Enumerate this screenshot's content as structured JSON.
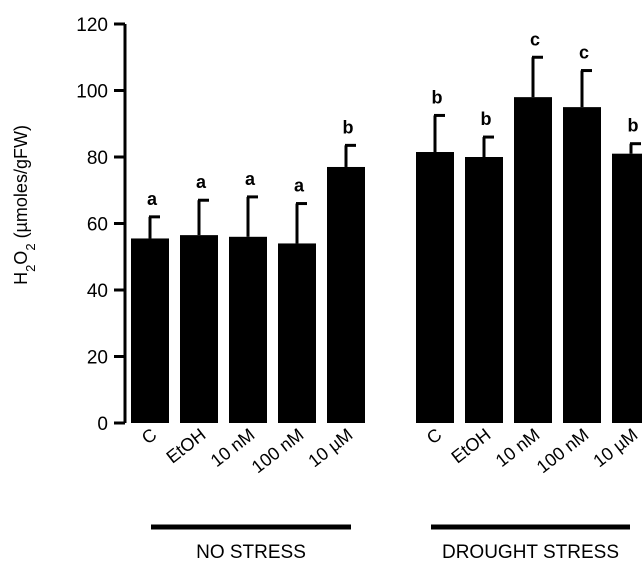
{
  "chart_data": {
    "type": "bar",
    "ylabel": {
      "main": "H",
      "sub1": "2",
      "mid": "O",
      "sub2": "2",
      "rest": " (µmoles/gFW)"
    },
    "ylim": [
      0,
      120
    ],
    "yticks": [
      "0",
      "20",
      "40",
      "60",
      "80",
      "100",
      "120"
    ],
    "grid": false,
    "bar_color": "#000000",
    "groups": [
      {
        "label": "NO STRESS",
        "categories": [
          "C",
          "EtOH",
          "10 nM",
          "100 nM",
          "10 µM"
        ],
        "values": [
          55.5,
          56.5,
          56,
          54,
          77
        ],
        "error_upper": [
          62,
          67,
          68,
          66,
          83.5
        ],
        "significance": [
          "a",
          "a",
          "a",
          "a",
          "b"
        ]
      },
      {
        "label": "DROUGHT STRESS",
        "categories": [
          "C",
          "EtOH",
          "10 nM",
          "100 nM",
          "10 µM"
        ],
        "values": [
          81.5,
          80,
          98,
          95,
          81
        ],
        "error_upper": [
          92.5,
          86,
          110,
          106,
          84
        ],
        "significance": [
          "b",
          "b",
          "c",
          "c",
          "b"
        ]
      }
    ]
  }
}
